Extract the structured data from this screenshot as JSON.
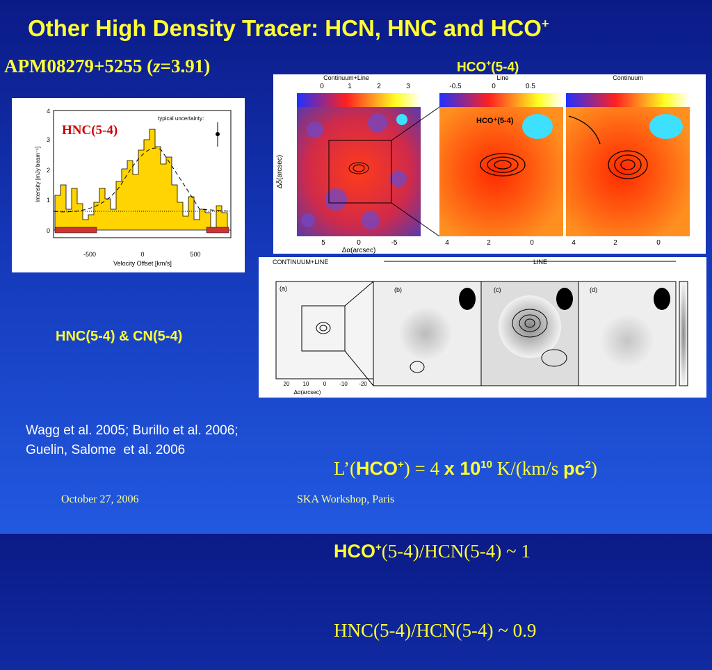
{
  "title": {
    "text": "Other High Density Tracer: HCN, HNC and HCO",
    "sup": "+"
  },
  "subtitle": {
    "source": "APM08279+5255 (",
    "z": "z",
    "rest": "=3.91)"
  },
  "figures": {
    "spectrum": {
      "label": "HNC(5-4)",
      "note": "typical uncertainty:",
      "ylabel": "Intensity [mJy beam⁻¹]",
      "xlabel": "Velocity Offset [km/s]",
      "yticks": [
        "0",
        "1",
        "2",
        "3",
        "4"
      ],
      "xticks": [
        "-500",
        "0",
        "500"
      ]
    },
    "hco_maps": {
      "caption": {
        "text": "HCO",
        "sup": "+",
        "rest": "(5-4)"
      },
      "panel_titles": [
        "Continuum+Line",
        "Line",
        "Continuum"
      ],
      "map_label": "HCO⁺(5-4)",
      "xlabel": "Δα(arcsec)",
      "ylabel": "Δδ(arcsec)",
      "xticks_left": [
        "5",
        "0",
        "-5"
      ],
      "xticks_zoom": [
        "4",
        "2",
        "0"
      ],
      "colorbar_left": [
        "0",
        "1",
        "2",
        "3"
      ],
      "colorbar_mid": [
        "-0.5",
        "0",
        "0.5"
      ]
    },
    "cn_maps": {
      "caption": "HNC(5-4) & CN(5-4)",
      "header_left": "CONTINUUM+LINE",
      "header_right": "LINE",
      "panels": [
        "(a)",
        "(b)",
        "(c)",
        "(d)"
      ],
      "xlabel": "Δα(arcsec)",
      "xticks": [
        "20",
        "10",
        "0",
        "-10",
        "-20"
      ]
    }
  },
  "references": [
    "Wagg et al. 2005; Burillo et al. 2006;",
    "Guelin, Salome  et al. 2006"
  ],
  "results": {
    "line1": [
      "L’(",
      "HCO",
      "+",
      ") = 4 ",
      "x 10",
      "10",
      " K/(km/s ",
      "pc",
      "2",
      ")"
    ],
    "line2": [
      "HCO",
      "+",
      "(5-4)/HCN(5-4) ~ 1"
    ],
    "line3": "HNC(5-4)/HCN(5-4) ~ 0.9"
  },
  "footer": {
    "date": "October 27, 2006",
    "event": "SKA Workshop, Paris"
  }
}
